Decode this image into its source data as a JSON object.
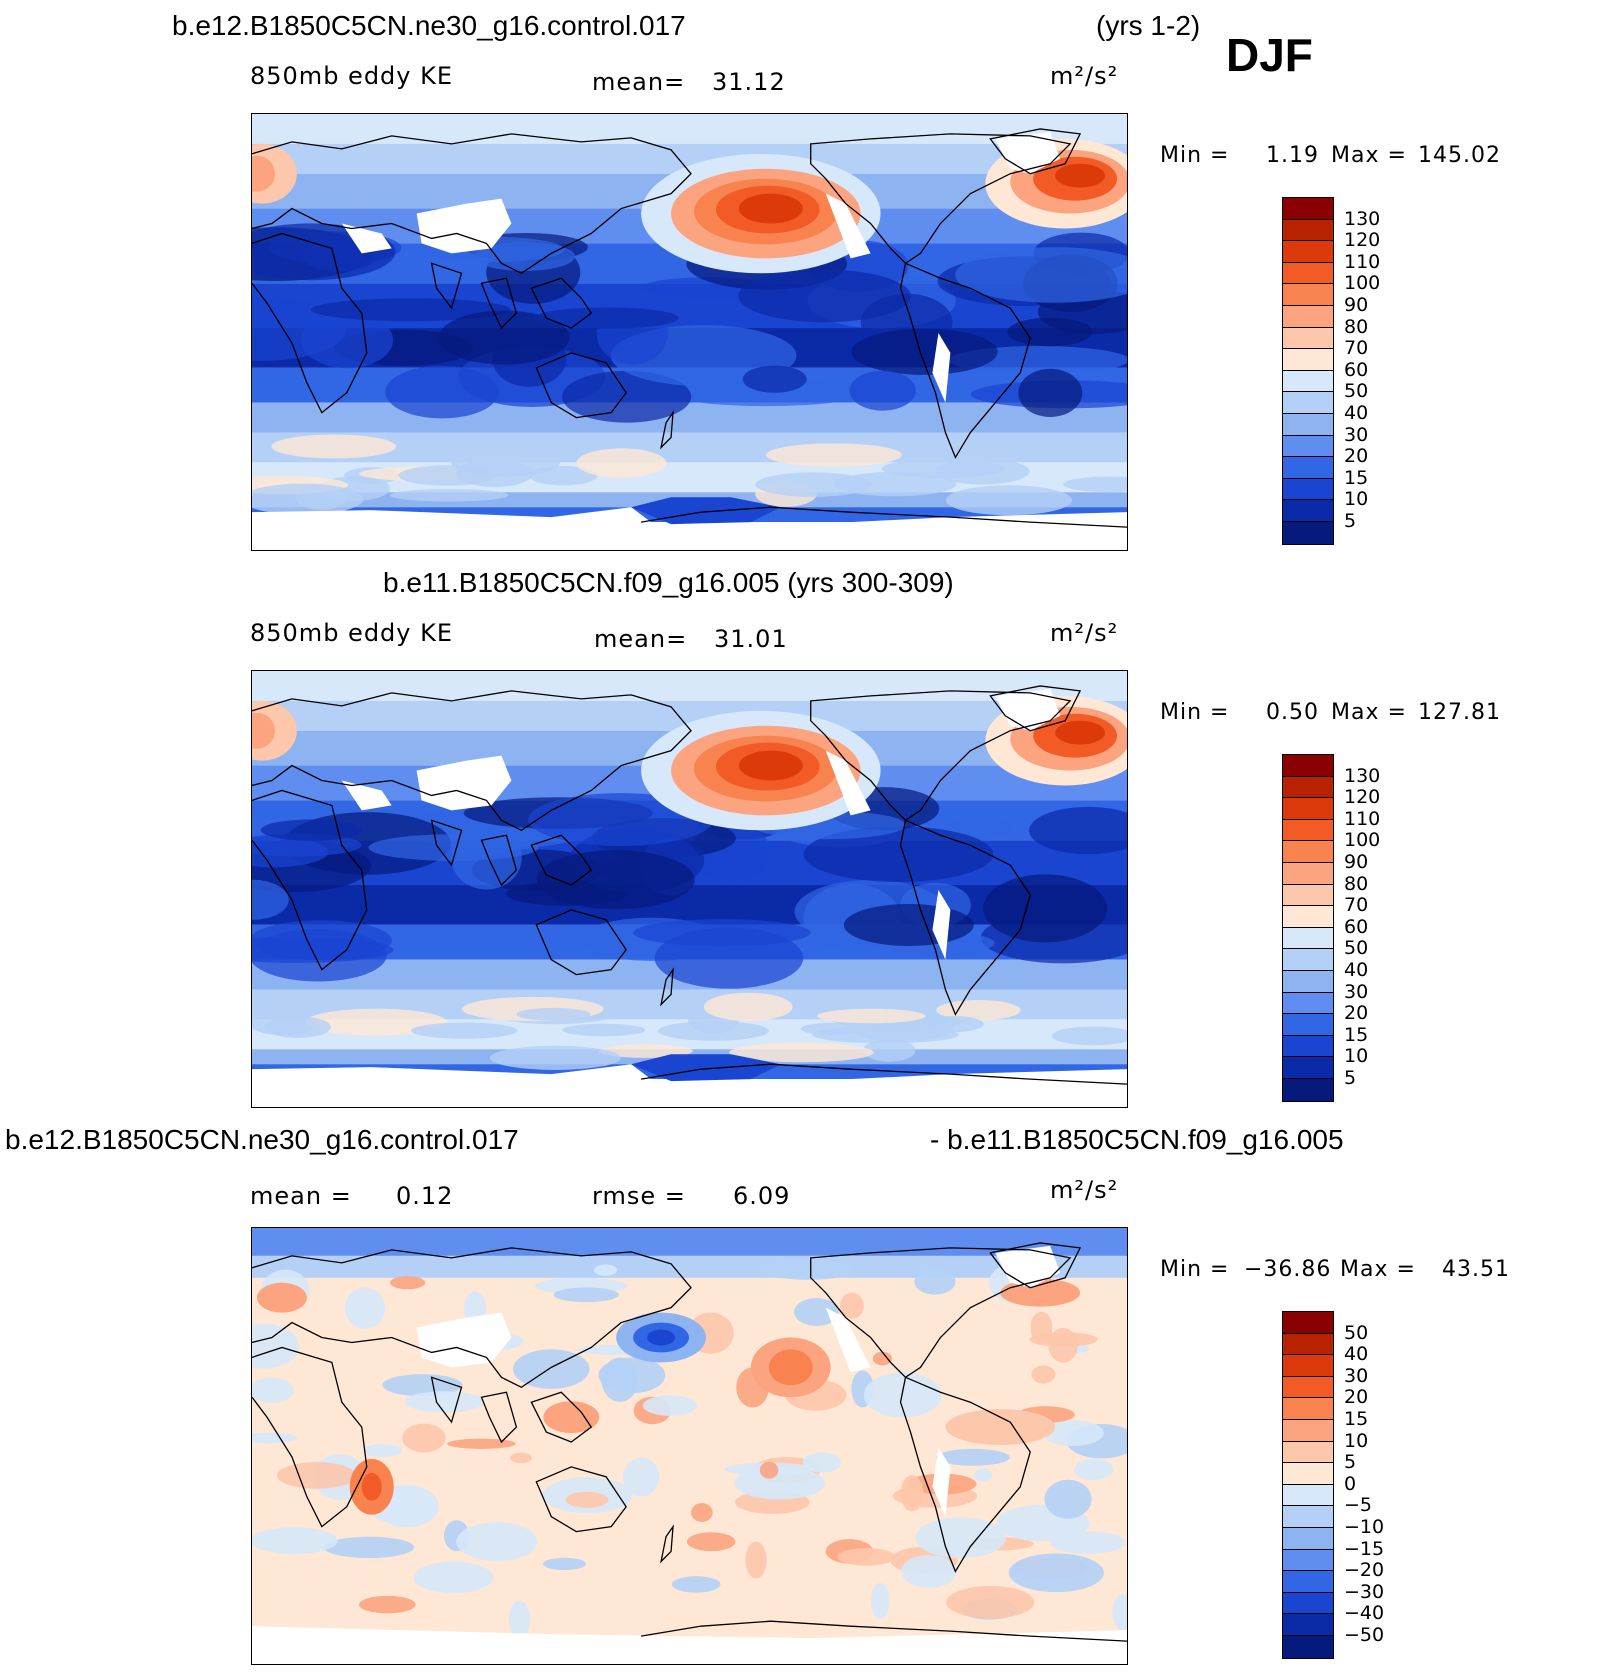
{
  "page": {
    "season": "DJF"
  },
  "panels": [
    {
      "title_left": "b.e12.B1850C5CN.ne30_g16.control.017",
      "title_right": "(yrs 1-2)",
      "variable": "850mb eddy KE",
      "stat_label": "mean=",
      "stat_value": "31.12",
      "units": "m²/s²",
      "min_label": "Min =",
      "min_value": "1.19",
      "max_label": "Max =",
      "max_value": "145.02",
      "colorbar": {
        "labels": [
          "130",
          "120",
          "110",
          "100",
          "90",
          "80",
          "70",
          "60",
          "50",
          "40",
          "30",
          "20",
          "15",
          "10",
          "5"
        ],
        "colors": [
          "#8b0000",
          "#b82200",
          "#dc3a0a",
          "#f25b25",
          "#f8834f",
          "#fba47f",
          "#fdc7ab",
          "#fee7d5",
          "#d6e8fa",
          "#b4d0f6",
          "#8db3f1",
          "#5f8ef0",
          "#3166e4",
          "#1a45d1",
          "#0b2aa8",
          "#061a7e"
        ]
      },
      "field": "ke"
    },
    {
      "title_left": "b.e11.B1850C5CN.f09_g16.005 (yrs 300-309)",
      "variable": "850mb eddy KE",
      "stat_label": "mean=",
      "stat_value": "31.01",
      "units": "m²/s²",
      "min_label": "Min =",
      "min_value": "0.50",
      "max_label": "Max =",
      "max_value": "127.81",
      "colorbar": {
        "labels": [
          "130",
          "120",
          "110",
          "100",
          "90",
          "80",
          "70",
          "60",
          "50",
          "40",
          "30",
          "20",
          "15",
          "10",
          "5"
        ],
        "colors": [
          "#8b0000",
          "#b82200",
          "#dc3a0a",
          "#f25b25",
          "#f8834f",
          "#fba47f",
          "#fdc7ab",
          "#fee7d5",
          "#d6e8fa",
          "#b4d0f6",
          "#8db3f1",
          "#5f8ef0",
          "#3166e4",
          "#1a45d1",
          "#0b2aa8",
          "#061a7e"
        ]
      },
      "field": "ke"
    },
    {
      "title_left": "b.e12.B1850C5CN.ne30_g16.control.017",
      "title_right": "- b.e11.B1850C5CN.f09_g16.005",
      "stat_label": "mean =",
      "stat_value": "0.12",
      "stat2_label": "rmse =",
      "stat2_value": "6.09",
      "units": "m²/s²",
      "min_label": "Min =",
      "min_value": "−36.86",
      "max_label": "Max =",
      "max_value": "43.51",
      "colorbar": {
        "labels": [
          "50",
          "40",
          "30",
          "20",
          "15",
          "10",
          "5",
          "0",
          "−5",
          "−10",
          "−15",
          "−20",
          "−30",
          "−40",
          "−50"
        ],
        "colors": [
          "#8b0000",
          "#b82200",
          "#dc3a0a",
          "#f25b25",
          "#f8834f",
          "#fba47f",
          "#fdc7ab",
          "#fee7d5",
          "#d6e8fa",
          "#b4d0f6",
          "#8db3f1",
          "#5f8ef0",
          "#3166e4",
          "#1a45d1",
          "#0b2aa8",
          "#061a7e"
        ]
      },
      "field": "diff"
    }
  ]
}
